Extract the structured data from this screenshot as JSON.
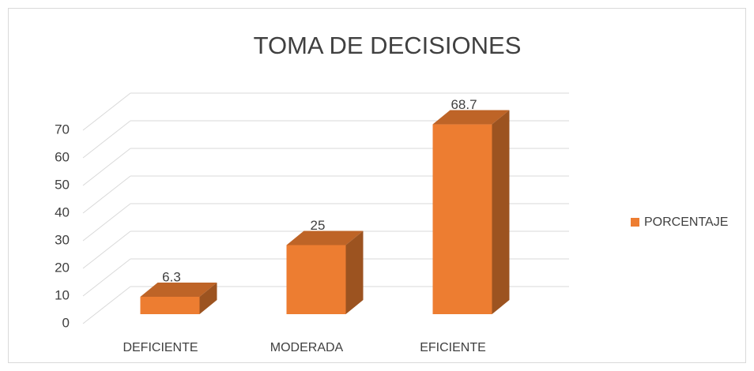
{
  "chart_data": {
    "type": "bar3d",
    "title": "TOMA DE DECISIONES",
    "categories": [
      "DEFICIENTE",
      "MODERADA",
      "EFICIENTE"
    ],
    "series": [
      {
        "name": "PORCENTAJE",
        "color": "#ed7d31",
        "values": [
          6.3,
          25,
          68.7
        ]
      }
    ],
    "ylim": [
      0,
      70
    ],
    "yticks": [
      0,
      10,
      20,
      30,
      40,
      50,
      60,
      70
    ],
    "grid": true,
    "legend": "right"
  }
}
